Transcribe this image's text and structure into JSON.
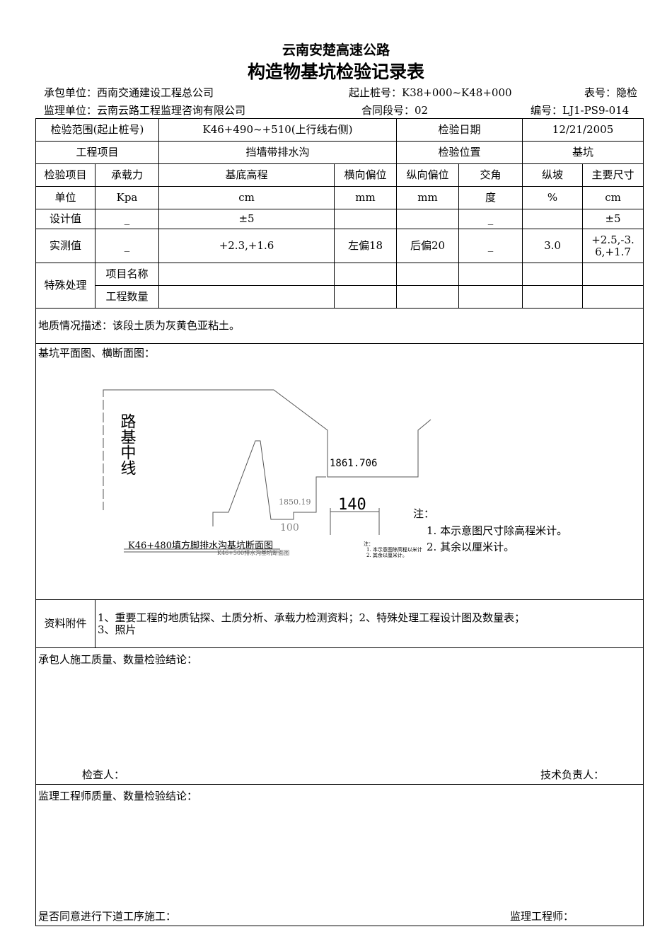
{
  "header": {
    "subtitle": "云南安楚高速公路",
    "title": "构造物基坑检验记录表",
    "contractor": "承包单位：西南交通建设工程总公司",
    "station_range": "起止桩号：K38+000~K48+000",
    "form_no": "表号：隐检",
    "supervisor": "监理单位：云南云路工程监理咨询有限公司",
    "contract_section": "合同段号：02",
    "serial_no": "编号：LJ1-PS9-014"
  },
  "table": {
    "range_label": "检验范围(起止桩号)",
    "range_value": "K46+490~+510(上行线右侧)",
    "date_label": "检验日期",
    "date_value": "12/21/2005",
    "project_label": "工程项目",
    "project_value": "挡墙带排水沟",
    "position_label": "检验位置",
    "position_value": "基坑",
    "headers": [
      "检验项目",
      "承载力",
      "基底高程",
      "横向偏位",
      "纵向偏位",
      "交角",
      "纵坡",
      "主要尺寸"
    ],
    "units": [
      "单位",
      "Kpa",
      "cm",
      "mm",
      "mm",
      "度",
      "%",
      "cm"
    ],
    "design": [
      "设计值",
      "_",
      "±5",
      "",
      "",
      "_",
      "",
      "±5"
    ],
    "measured": [
      "实测值",
      "_",
      "+2.3,+1.6",
      "左偏18",
      "后偏20",
      "_",
      "3.0",
      "+2.5,-3.6,+1.7"
    ],
    "special_label": "特殊处理",
    "special_name": "项目名称",
    "special_qty": "工程数量",
    "geology": "地质情况描述：该段土质为灰黄色亚粘土。",
    "drawing_label": "基坑平面图、横断面图：",
    "attach_label": "资料附件",
    "attach_text1": "1、重要工程的地质钻探、土质分析、承载力检测资料；2、特殊处理工程设计图及数量表；",
    "attach_text2": "3、照片",
    "contractor_conclusion": "承包人施工质量、数量检验结论：",
    "inspector": "检查人：",
    "tech_lead": "技术负责人：",
    "supervisor_conclusion": "监理工程师质量、数量检验结论：",
    "proceed": "是否同意进行下道工序施工：",
    "engineer": "监理工程师："
  },
  "drawing": {
    "centerline": "路基中线",
    "elev1": "1861.706",
    "elev2": "1850.19",
    "width1": "140",
    "width2": "100",
    "caption1": "K46+480填方脚排水沟基坑断面图",
    "caption2": "K46+500排水沟基坑断面图",
    "note_title": "注：",
    "note1": "1. 本示意图尺寸除高程米计。",
    "note2": "2. 其余以厘米计。",
    "small_note_title": "注：",
    "small_note1": "1. 本示意图除高程以米计",
    "small_note2": "2. 其余以厘米计。"
  }
}
